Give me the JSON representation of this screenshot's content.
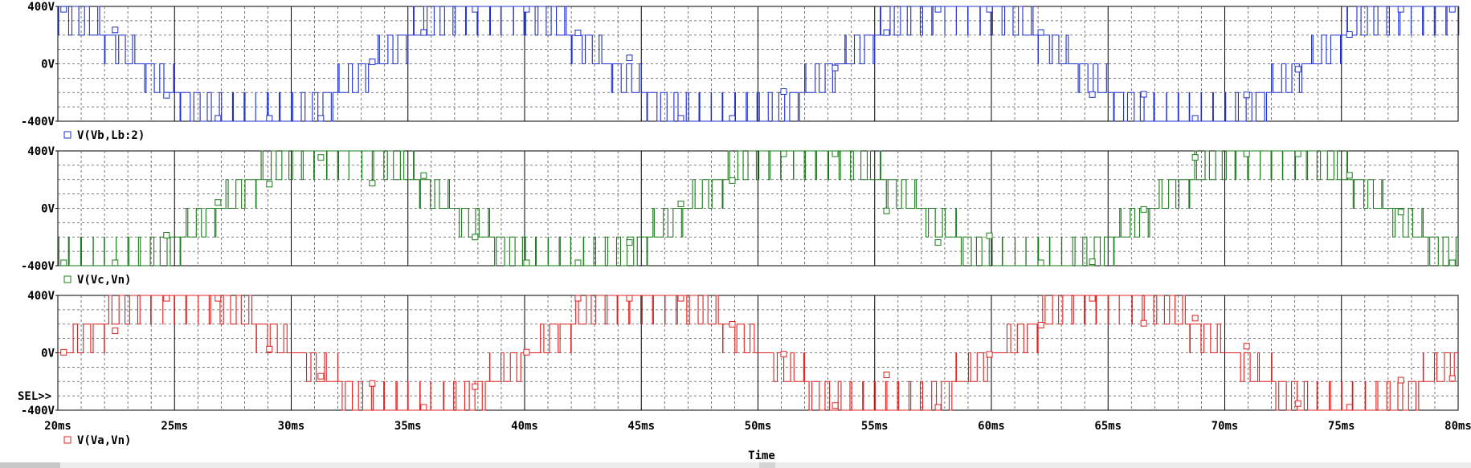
{
  "chart_data": [
    {
      "type": "line",
      "legend": "V(Vb,Lb:2)",
      "color": "#1e2fd0",
      "yticks": [
        "400V",
        "0V",
        "-400V"
      ],
      "ylim": [
        -400,
        400
      ],
      "levels": [
        -400,
        -200,
        0,
        200,
        400
      ],
      "phase_deg": 120,
      "series": [
        {
          "name": "V(Vb,Lb:2)"
        }
      ]
    },
    {
      "type": "line",
      "legend": "V(Vc,Vn)",
      "color": "#1b7a1b",
      "yticks": [
        "400V",
        "0V",
        "-400V"
      ],
      "ylim": [
        -400,
        400
      ],
      "levels": [
        -400,
        -200,
        0,
        200,
        400
      ],
      "phase_deg": 240,
      "series": [
        {
          "name": "V(Vc,Vn)"
        }
      ]
    },
    {
      "type": "line",
      "legend": "V(Va,Vn)",
      "color": "#e02020",
      "yticks": [
        "400V",
        "0V",
        "-400V"
      ],
      "ylim": [
        -400,
        400
      ],
      "levels": [
        -400,
        -200,
        0,
        200,
        400
      ],
      "phase_deg": 0,
      "series": [
        {
          "name": "V(Va,Vn)"
        }
      ]
    }
  ],
  "x_axis": {
    "label": "Time",
    "ticks": [
      "20ms",
      "25ms",
      "30ms",
      "35ms",
      "40ms",
      "45ms",
      "50ms",
      "55ms",
      "60ms",
      "65ms",
      "70ms",
      "75ms",
      "80ms"
    ],
    "xlim_ms": [
      20,
      80
    ],
    "fundamental_hz": 50,
    "switching_period_ms": 0.5
  },
  "selected_marker": "SEL>>",
  "grid": true
}
